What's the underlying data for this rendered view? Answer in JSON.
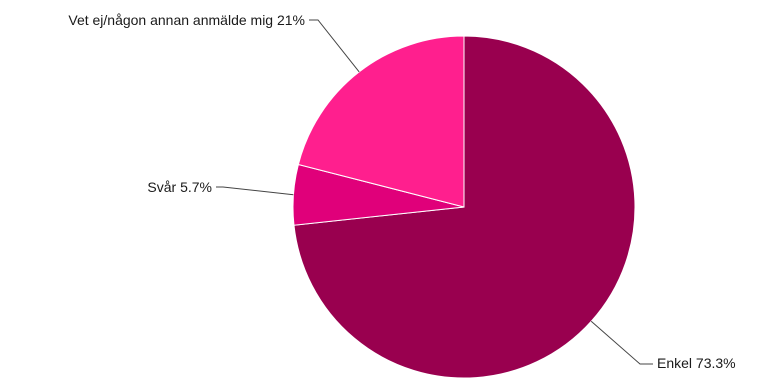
{
  "chart_data": {
    "type": "pie",
    "title": "",
    "slices": [
      {
        "label": "Enkel 73.3%",
        "name": "Enkel",
        "value": 73.3,
        "color": "#99004f"
      },
      {
        "label": "Svår 5.7%",
        "name": "Svår",
        "value": 5.7,
        "color": "#e0007a"
      },
      {
        "label": "Vet ej/någon annan anmälde mig 21%",
        "name": "Vet ej/någon annan anmälde mig",
        "value": 21,
        "color": "#ff1f8e"
      }
    ],
    "start": "12 o'clock",
    "direction": "clockwise",
    "legend": "none"
  }
}
